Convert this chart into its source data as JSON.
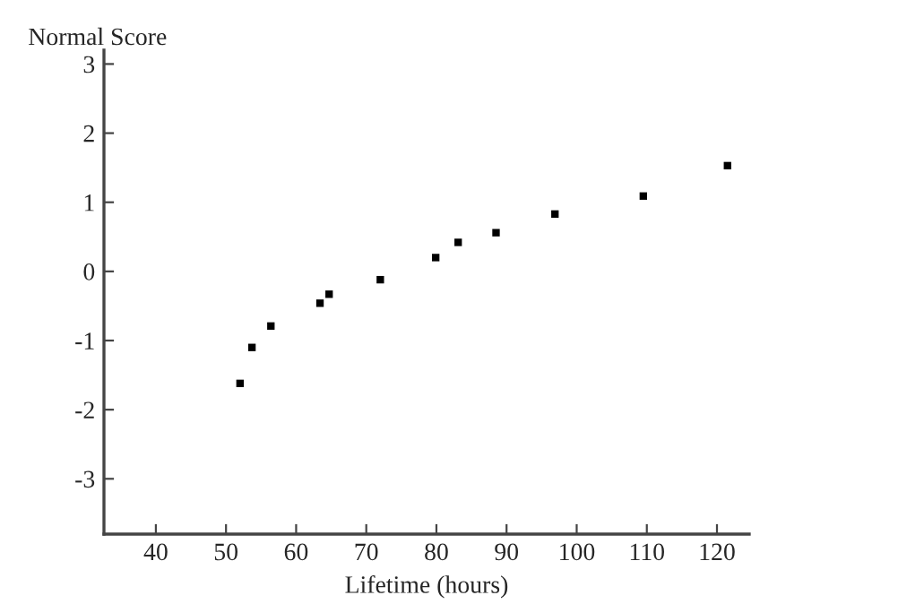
{
  "chart_data": {
    "type": "scatter",
    "xlabel": "Lifetime (hours)",
    "ylabel": "Normal Score",
    "x": [
      52.0,
      53.7,
      56.4,
      63.4,
      64.7,
      72.0,
      79.9,
      83.1,
      88.5,
      96.9,
      109.5,
      121.5
    ],
    "series": [
      {
        "color": "#000000",
        "values": [
          -1.62,
          -1.1,
          -0.79,
          -0.46,
          -0.33,
          -0.12,
          0.2,
          0.42,
          0.56,
          0.83,
          1.09,
          1.53
        ]
      }
    ],
    "xlim": [
      32.6,
      124.6
    ],
    "xticks": [
      40,
      50,
      60,
      70,
      80,
      90,
      100,
      110,
      120
    ],
    "ylim": [
      -3.8,
      3.2
    ],
    "yticks": [
      -3,
      -2,
      -1,
      0,
      1,
      2,
      3
    ],
    "marker": "square",
    "grid": false,
    "legend": false
  }
}
